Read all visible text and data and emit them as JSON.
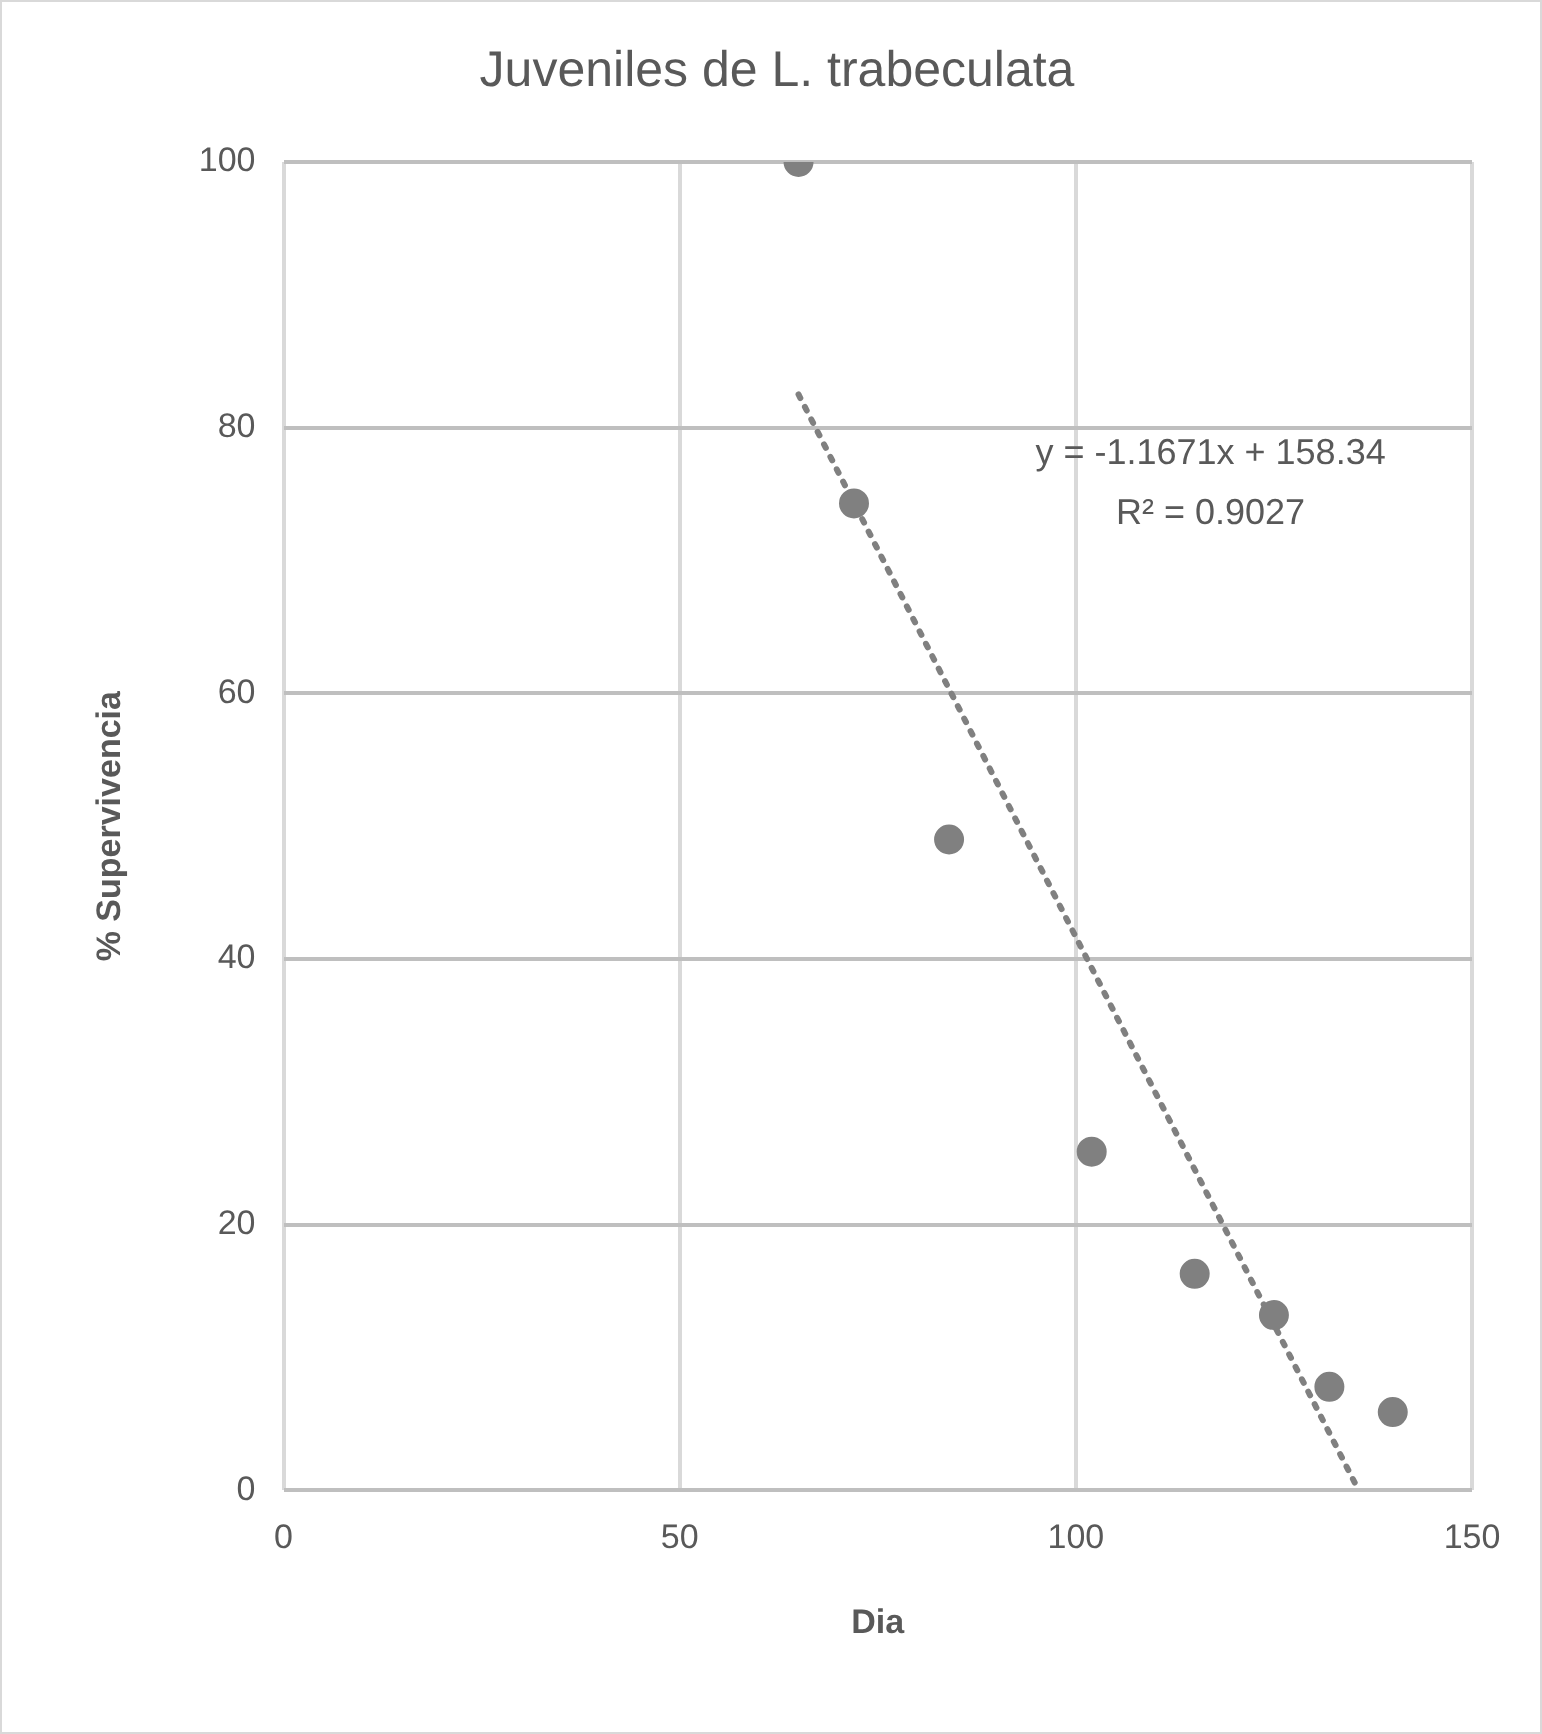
{
  "chart_data": {
    "type": "scatter",
    "title": "Juveniles de L. trabeculata",
    "xlabel": "Dia",
    "ylabel": "% Supervivencia",
    "xlim": [
      0,
      150
    ],
    "xticks": [
      0,
      50,
      100,
      150
    ],
    "ylim": [
      0,
      100
    ],
    "yticks": [
      0,
      20,
      40,
      60,
      80,
      100
    ],
    "grid": true,
    "legend": false,
    "marker": "circle",
    "series": [
      {
        "color": "#808080",
        "x": [
          65,
          72,
          84,
          102,
          115,
          125,
          132,
          140
        ],
        "values": [
          100,
          74.3,
          49,
          25.5,
          16.3,
          13.2,
          7.8,
          5.9
        ]
      },
      {
        "type": "line",
        "color": "#808080",
        "line_style": "dotted",
        "marker": "none",
        "x": [
          65,
          135.7
        ],
        "values": [
          82.5,
          0
        ]
      }
    ],
    "annotations": [
      "y = -1.1671x + 158.34",
      "R² = 0.9027"
    ]
  }
}
